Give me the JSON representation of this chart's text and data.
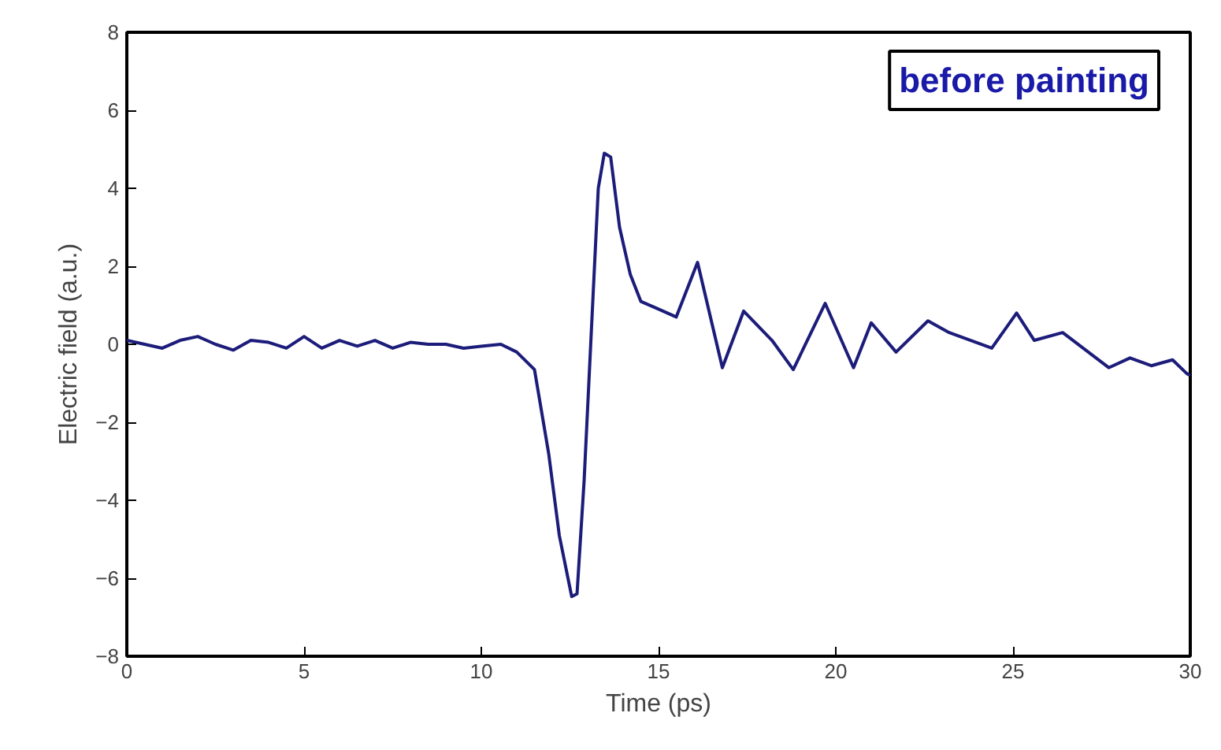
{
  "chart_data": {
    "type": "line",
    "xlabel": "Time (ps)",
    "ylabel": "Electric field (a.u.)",
    "annotations": [
      "before painting"
    ],
    "xlim": [
      0,
      30
    ],
    "ylim": [
      -8,
      8
    ],
    "xticks": [
      0,
      5,
      10,
      15,
      20,
      25,
      30
    ],
    "yticks": [
      -8,
      -6,
      -4,
      -2,
      0,
      2,
      4,
      6,
      8
    ],
    "grid": false,
    "marker": "none",
    "line_style": "solid",
    "series": [
      {
        "color": "#1c1c7a",
        "x": [
          0,
          0.5,
          1,
          1.5,
          2,
          2.5,
          3,
          3.5,
          4,
          4.5,
          5,
          5.5,
          6,
          6.5,
          7,
          7.5,
          8,
          8.5,
          9,
          9.5,
          10,
          10.55,
          11,
          11.5,
          11.9,
          12.2,
          12.55,
          12.7,
          12.9,
          13.15,
          13.3,
          13.47,
          13.65,
          13.9,
          14.2,
          14.5,
          15,
          15.5,
          16.1,
          16.8,
          17.4,
          18.2,
          18.8,
          19.7,
          20.5,
          21.0,
          21.7,
          22.6,
          23.2,
          24.4,
          25.1,
          25.6,
          26.4,
          27.7,
          28.3,
          28.9,
          29.5,
          29.9,
          30
        ],
        "values": [
          0.1,
          0.0,
          -0.1,
          0.1,
          0.2,
          0.0,
          -0.15,
          0.1,
          0.05,
          -0.1,
          0.2,
          -0.1,
          0.1,
          -0.05,
          0.1,
          -0.1,
          0.05,
          0.0,
          0.0,
          -0.1,
          -0.05,
          0.0,
          -0.2,
          -0.65,
          -2.8,
          -4.9,
          -6.47,
          -6.4,
          -3.5,
          1.2,
          4.0,
          4.9,
          4.8,
          3.0,
          1.8,
          1.1,
          0.9,
          0.7,
          2.1,
          -0.6,
          0.85,
          0.1,
          -0.65,
          1.05,
          -0.6,
          0.55,
          -0.2,
          0.6,
          0.3,
          -0.1,
          0.8,
          0.1,
          0.3,
          -0.6,
          -0.35,
          -0.55,
          -0.4,
          -0.75,
          -0.8
        ]
      }
    ]
  }
}
